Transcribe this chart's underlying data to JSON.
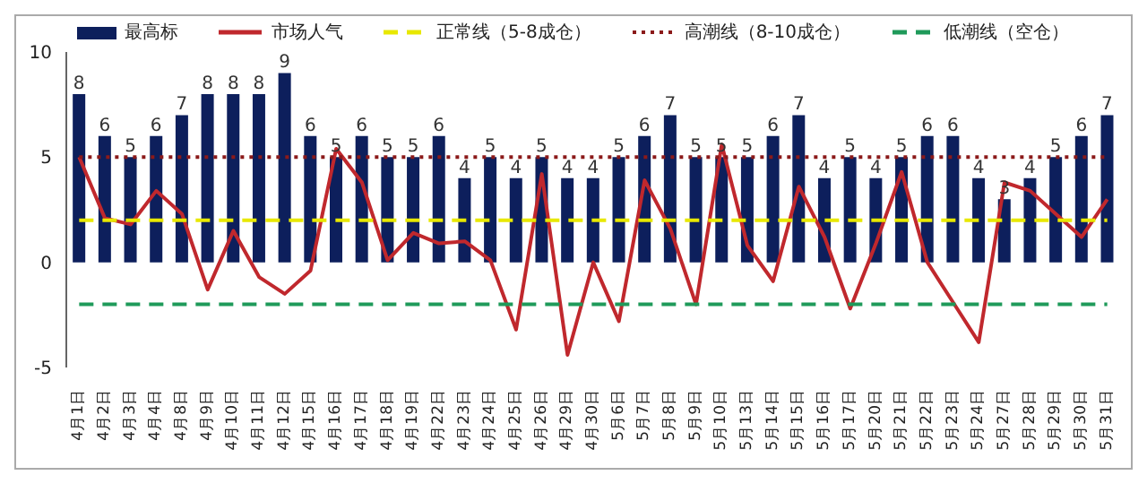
{
  "chart_data": {
    "type": "bar",
    "categories": [
      "4月1日",
      "4月2日",
      "4月3日",
      "4月4日",
      "4月8日",
      "4月9日",
      "4月10日",
      "4月11日",
      "4月12日",
      "4月15日",
      "4月16日",
      "4月17日",
      "4月18日",
      "4月19日",
      "4月22日",
      "4月23日",
      "4月24日",
      "4月25日",
      "4月26日",
      "4月29日",
      "4月30日",
      "5月6日",
      "5月7日",
      "5月8日",
      "5月9日",
      "5月10日",
      "5月13日",
      "5月14日",
      "5月15日",
      "5月16日",
      "5月17日",
      "5月20日",
      "5月21日",
      "5月22日",
      "5月23日",
      "5月24日",
      "5月27日",
      "5月28日",
      "5月29日",
      "5月30日",
      "5月31日"
    ],
    "series": [
      {
        "name": "最高标",
        "color": "#0d1f5c",
        "values": [
          8,
          6,
          5,
          6,
          7,
          8,
          8,
          8,
          9,
          6,
          5,
          6,
          5,
          5,
          6,
          4,
          5,
          4,
          5,
          4,
          4,
          5,
          6,
          7,
          5,
          5,
          5,
          6,
          7,
          4,
          5,
          4,
          5,
          6,
          6,
          4,
          3,
          4,
          5,
          6,
          7
        ],
        "value_labels": [
          "8",
          "6",
          "5",
          "6",
          "7",
          "8",
          "8",
          "8",
          "9",
          "6",
          "5",
          "6",
          "5",
          "5",
          "6",
          "4",
          "5",
          "4",
          "5",
          "4",
          "4",
          "5",
          "6",
          "7",
          "5",
          "5",
          "5",
          "6",
          "7",
          "4",
          "5",
          "4",
          "5",
          "6",
          "6",
          "4",
          "3",
          "4",
          "5",
          "6",
          "7"
        ]
      },
      {
        "name": "市场人气",
        "type": "line",
        "color": "#c0282d",
        "line_style": "solid",
        "values": [
          5,
          2.1,
          1.8,
          3.4,
          2.3,
          -1.3,
          1.5,
          -0.7,
          -1.5,
          -0.4,
          5.4,
          3.8,
          0.1,
          1.4,
          0.9,
          1,
          0.1,
          -3.2,
          4.2,
          -4.4,
          0,
          -2.8,
          3.9,
          1.6,
          -2,
          5.6,
          0.8,
          -0.9,
          3.6,
          1.2,
          -2.2,
          0.9,
          4.3,
          0,
          -1.9,
          -3.8,
          3.8,
          3.4,
          2.3,
          1.2,
          3
        ]
      },
      {
        "name": "正常线（5-8成仓）",
        "type": "line",
        "color": "#e8e800",
        "line_style": "dashed",
        "values": [
          2,
          2,
          2,
          2,
          2,
          2,
          2,
          2,
          2,
          2,
          2,
          2,
          2,
          2,
          2,
          2,
          2,
          2,
          2,
          2,
          2,
          2,
          2,
          2,
          2,
          2,
          2,
          2,
          2,
          2,
          2,
          2,
          2,
          2,
          2,
          2,
          2,
          2,
          2,
          2,
          2
        ]
      },
      {
        "name": "高潮线（8-10成仓）",
        "type": "line",
        "color": "#8b1a1a",
        "line_style": "dotted",
        "values": [
          5,
          5,
          5,
          5,
          5,
          5,
          5,
          5,
          5,
          5,
          5,
          5,
          5,
          5,
          5,
          5,
          5,
          5,
          5,
          5,
          5,
          5,
          5,
          5,
          5,
          5,
          5,
          5,
          5,
          5,
          5,
          5,
          5,
          5,
          5,
          5,
          5,
          5,
          5,
          5,
          5
        ]
      },
      {
        "name": "低潮线（空仓）",
        "type": "line",
        "color": "#1f9a5a",
        "line_style": "dashed",
        "values": [
          -2,
          -2,
          -2,
          -2,
          -2,
          -2,
          -2,
          -2,
          -2,
          -2,
          -2,
          -2,
          -2,
          -2,
          -2,
          -2,
          -2,
          -2,
          -2,
          -2,
          -2,
          -2,
          -2,
          -2,
          -2,
          -2,
          -2,
          -2,
          -2,
          -2,
          -2,
          -2,
          -2,
          -2,
          -2,
          -2,
          -2,
          -2,
          -2,
          -2,
          -2
        ]
      }
    ],
    "ylim": [
      -5,
      10
    ],
    "yticks": [
      -5,
      0,
      5,
      10
    ],
    "grid": false,
    "legend": "top",
    "marker": "none"
  }
}
